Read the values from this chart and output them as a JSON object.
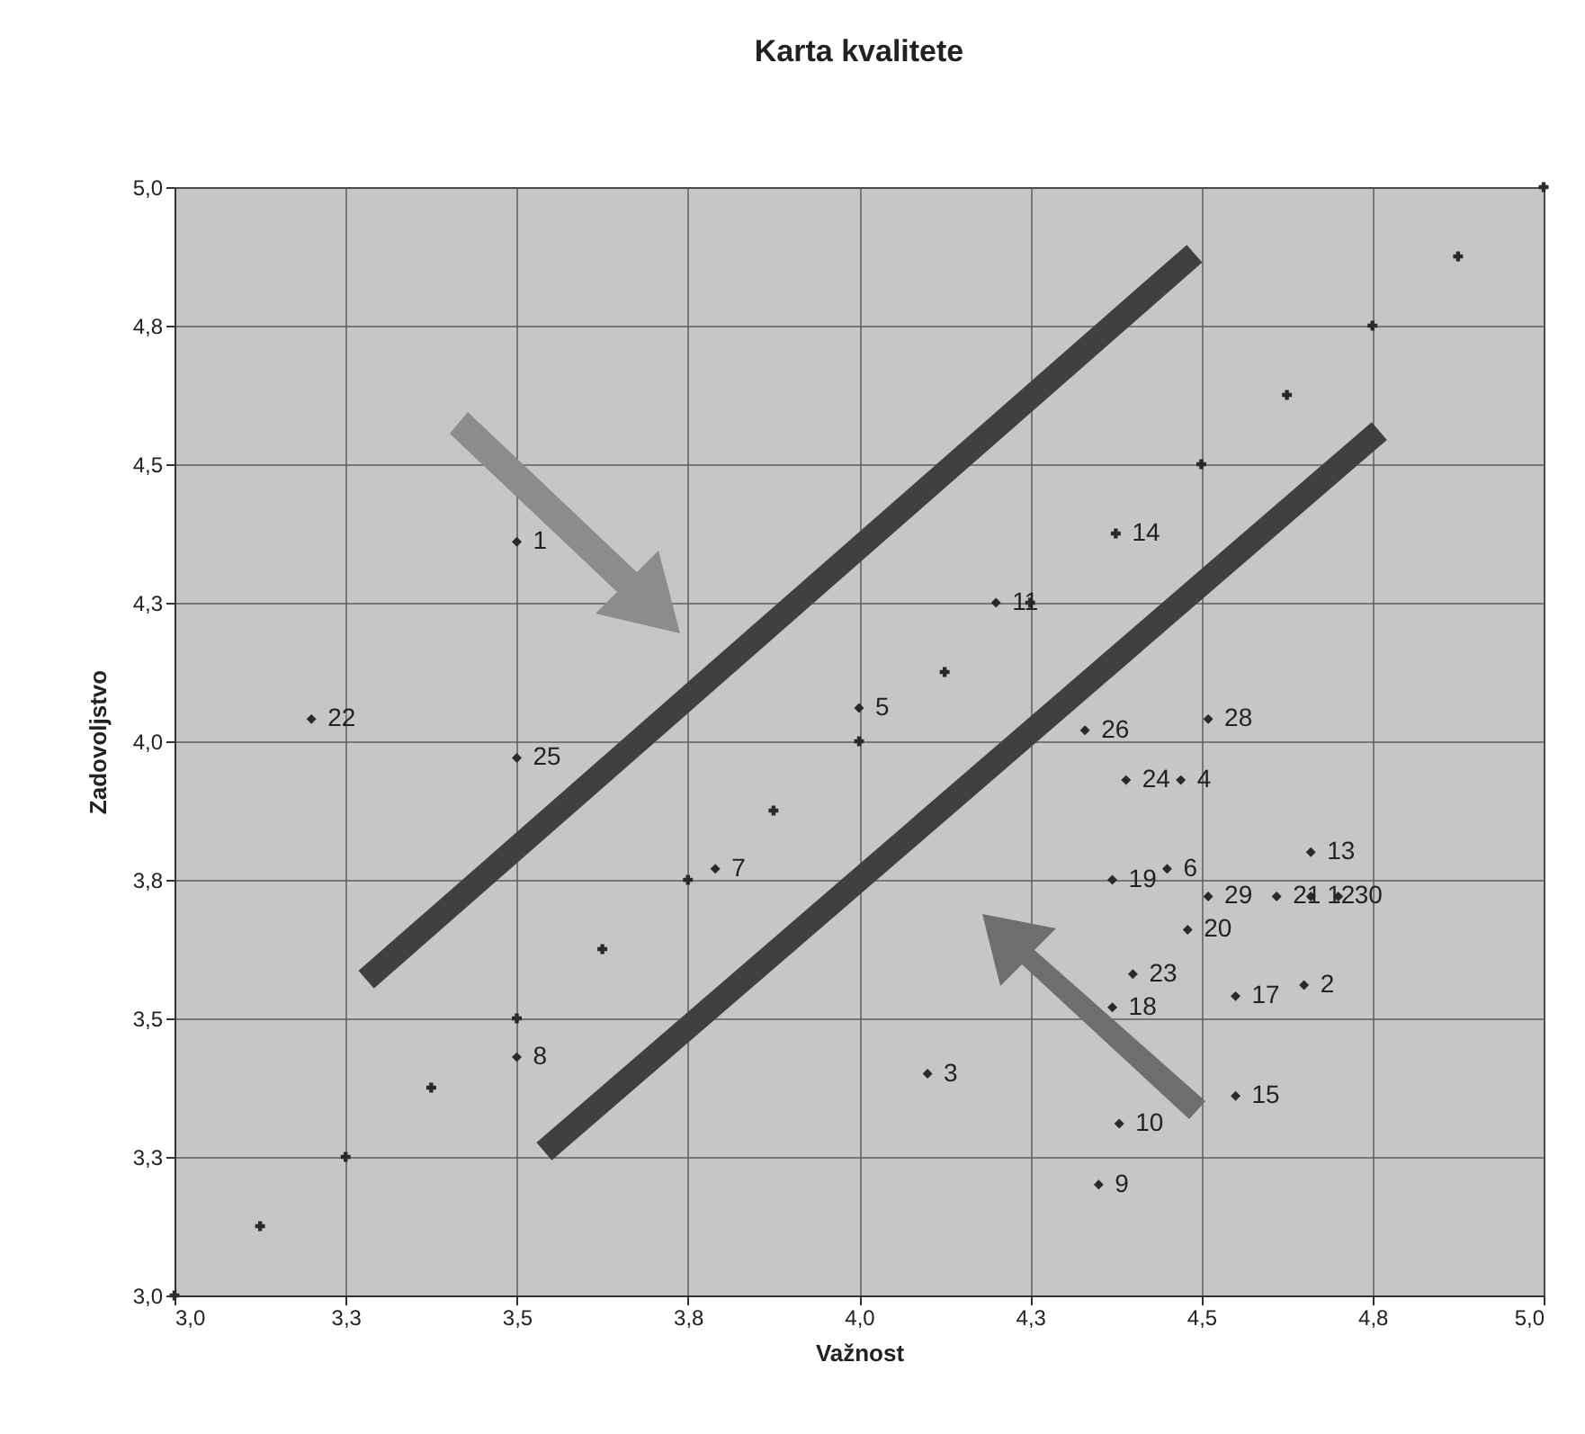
{
  "chart_data": {
    "type": "scatter",
    "title": "Karta kvalitete",
    "xlabel": "Važnost",
    "ylabel": "Zadovoljstvo",
    "xlim": [
      3,
      5
    ],
    "ylim": [
      3,
      5
    ],
    "xticks": [
      {
        "value": 3,
        "label": "3,0"
      },
      {
        "value": 3.25,
        "label": "3,3"
      },
      {
        "value": 3.5,
        "label": "3,5"
      },
      {
        "value": 3.75,
        "label": "3,8"
      },
      {
        "value": 4,
        "label": "4,0"
      },
      {
        "value": 4.25,
        "label": "4,3"
      },
      {
        "value": 4.5,
        "label": "4,5"
      },
      {
        "value": 4.75,
        "label": "4,8"
      },
      {
        "value": 5,
        "label": "5,0"
      }
    ],
    "yticks": [
      {
        "value": 3,
        "label": "3,0"
      },
      {
        "value": 3.25,
        "label": "3,3"
      },
      {
        "value": 3.5,
        "label": "3,5"
      },
      {
        "value": 3.75,
        "label": "3,8"
      },
      {
        "value": 4,
        "label": "4,0"
      },
      {
        "value": 4.25,
        "label": "4,3"
      },
      {
        "value": 4.5,
        "label": "4,5"
      },
      {
        "value": 4.75,
        "label": "4,8"
      },
      {
        "value": 5,
        "label": "5,0"
      }
    ],
    "grid": true,
    "series": [
      {
        "type": "line",
        "color": "#404040",
        "marker": "none",
        "x": [
          3.28,
          4.49
        ],
        "values": [
          3.57,
          4.88
        ]
      },
      {
        "type": "line",
        "color": "#404040",
        "marker": "none",
        "x": [
          3.54,
          4.76
        ],
        "values": [
          3.26,
          4.56
        ]
      },
      {
        "color": "#2a2a2a",
        "marker": "cross",
        "x": [
          3,
          3.125,
          3.25,
          3.375,
          3.5,
          3.625,
          3.75,
          3.875,
          4,
          4.125,
          4.25,
          4.375,
          4.5,
          4.625,
          4.75,
          4.875,
          5
        ],
        "values": [
          3,
          3.125,
          3.25,
          3.375,
          3.5,
          3.625,
          3.75,
          3.875,
          4,
          4.125,
          4.25,
          4.375,
          4.5,
          4.625,
          4.75,
          4.875,
          5
        ]
      },
      {
        "color": "#2a2a2a",
        "marker": "diamond",
        "x": [
          3.5,
          4.65,
          4.1,
          4.47,
          4,
          4.45,
          3.79,
          3.5,
          4.35,
          4.38,
          4.2,
          4.66,
          4.66,
          4.55,
          4.55,
          4.37,
          4.37,
          4.48,
          4.61,
          3.2,
          4.4,
          4.39,
          3.5,
          4.33,
          4.51,
          4.51,
          4.7
        ],
        "values": [
          4.36,
          3.56,
          3.4,
          3.93,
          4.06,
          3.77,
          3.77,
          3.43,
          3.2,
          3.31,
          4.25,
          3.72,
          3.8,
          3.36,
          3.54,
          3.52,
          3.75,
          3.66,
          3.72,
          4.04,
          3.58,
          3.93,
          3.97,
          4.02,
          4.04,
          3.72,
          3.72
        ]
      }
    ],
    "annotations": [
      {
        "text": "1",
        "x": 3.5,
        "y": 4.36
      },
      {
        "text": "2",
        "x": 4.65,
        "y": 3.56
      },
      {
        "text": "3",
        "x": 4.1,
        "y": 3.4
      },
      {
        "text": "4",
        "x": 4.47,
        "y": 3.93
      },
      {
        "text": "5",
        "x": 4,
        "y": 4.06
      },
      {
        "text": "6",
        "x": 4.45,
        "y": 3.77
      },
      {
        "text": "7",
        "x": 3.79,
        "y": 3.77
      },
      {
        "text": "8",
        "x": 3.5,
        "y": 3.43
      },
      {
        "text": "9",
        "x": 4.35,
        "y": 3.2
      },
      {
        "text": "10",
        "x": 4.38,
        "y": 3.31
      },
      {
        "text": "11",
        "x": 4.2,
        "y": 4.25
      },
      {
        "text": "12",
        "x": 4.66,
        "y": 3.72
      },
      {
        "text": "13",
        "x": 4.66,
        "y": 3.8
      },
      {
        "text": "15",
        "x": 4.55,
        "y": 3.36
      },
      {
        "text": "17",
        "x": 4.55,
        "y": 3.54
      },
      {
        "text": "18",
        "x": 4.37,
        "y": 3.52
      },
      {
        "text": "19",
        "x": 4.37,
        "y": 3.75
      },
      {
        "text": "20",
        "x": 4.48,
        "y": 3.66
      },
      {
        "text": "21",
        "x": 4.61,
        "y": 3.72
      },
      {
        "text": "22",
        "x": 3.2,
        "y": 4.04
      },
      {
        "text": "23",
        "x": 4.4,
        "y": 3.58
      },
      {
        "text": "24",
        "x": 4.39,
        "y": 3.93
      },
      {
        "text": "25",
        "x": 3.5,
        "y": 3.97
      },
      {
        "text": "26",
        "x": 4.33,
        "y": 4.02
      },
      {
        "text": "28",
        "x": 4.51,
        "y": 4.04
      },
      {
        "text": "29",
        "x": 4.51,
        "y": 3.72
      },
      {
        "text": "30",
        "x": 4.7,
        "y": 3.72
      },
      {
        "text": "14",
        "x": 4.375,
        "y": 4.375
      }
    ]
  }
}
